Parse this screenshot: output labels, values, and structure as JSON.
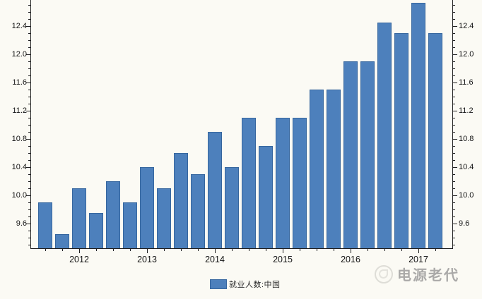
{
  "chart_data": {
    "type": "bar",
    "title": "",
    "xlabel": "",
    "ylabel": "",
    "x": [
      "2011Q3",
      "2011Q4",
      "2012Q1",
      "2012Q2",
      "2012Q3",
      "2012Q4",
      "2013Q1",
      "2013Q2",
      "2013Q3",
      "2013Q4",
      "2014Q1",
      "2014Q2",
      "2014Q3",
      "2014Q4",
      "2015Q1",
      "2015Q2",
      "2015Q3",
      "2015Q4",
      "2016Q1",
      "2016Q2",
      "2016Q3",
      "2016Q4",
      "2017Q1",
      "2017Q2"
    ],
    "values": [
      9.9,
      9.45,
      10.1,
      9.75,
      10.2,
      9.9,
      10.4,
      10.1,
      10.6,
      10.3,
      10.9,
      10.4,
      11.1,
      10.7,
      11.1,
      11.1,
      11.5,
      11.5,
      11.9,
      11.9,
      12.45,
      12.3,
      12.73,
      12.3
    ],
    "series": [
      {
        "name": "就业人数:中国",
        "values": [
          9.9,
          9.45,
          10.1,
          9.75,
          10.2,
          9.9,
          10.4,
          10.1,
          10.6,
          10.3,
          10.9,
          10.4,
          11.1,
          10.7,
          11.1,
          11.1,
          11.5,
          11.5,
          11.9,
          11.9,
          12.45,
          12.3,
          12.73,
          12.3
        ]
      }
    ],
    "x_year_tick_labels": [
      "2012",
      "2013",
      "2014",
      "2015",
      "2016",
      "2017"
    ],
    "y_major_ticks": [
      9.6,
      10.0,
      10.4,
      10.8,
      11.2,
      11.6,
      12.0,
      12.4
    ],
    "y_minor_step": 0.1,
    "ylim": [
      9.25,
      12.77
    ],
    "dual_y_axis": true,
    "grid": false,
    "legend_position": "bottom-center",
    "bar_color": "#4d80bc",
    "bar_border_color": "#36669e"
  },
  "legend": {
    "label": "就业人数:中国",
    "swatch_color": "#4d80bc"
  },
  "watermark": {
    "text": "电源老代"
  }
}
